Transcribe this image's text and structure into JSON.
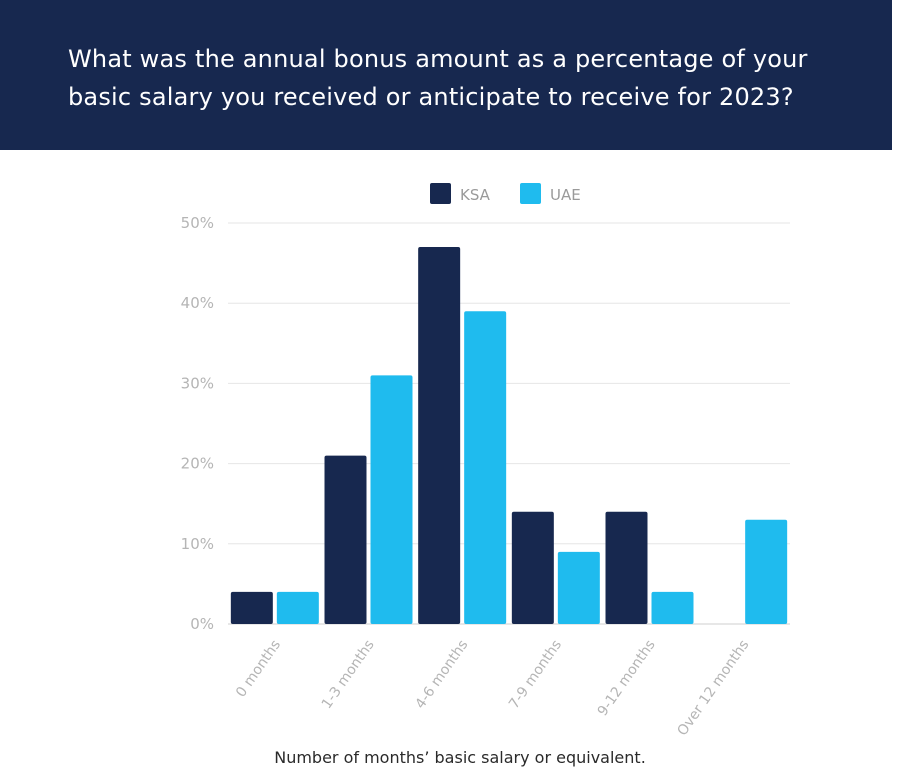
{
  "header": {
    "title": "What was the annual bonus amount as a percentage of your basic salary you received or anticipate to receive for 2023?"
  },
  "chart_data": {
    "type": "bar",
    "categories": [
      "0 months",
      "1-3 months",
      "4-6 months",
      "7-9 months",
      "9-12 months",
      "Over 12 months"
    ],
    "series": [
      {
        "name": "KSA",
        "color": "#17284f",
        "values": [
          4,
          21,
          47,
          14,
          14,
          0
        ]
      },
      {
        "name": "UAE",
        "color": "#1fbbee",
        "values": [
          4,
          31,
          39,
          9,
          4,
          13
        ]
      }
    ],
    "title": "What was the annual bonus amount as a percentage of your basic salary you received or anticipate to receive for 2023?",
    "xlabel": "Number of months’ basic salary or equivalent.",
    "ylabel": "",
    "ylim": [
      0,
      50
    ],
    "yticks": [
      "0%",
      "10%",
      "20%",
      "30%",
      "40%",
      "50%"
    ],
    "grid": true,
    "legend": "top-center"
  }
}
